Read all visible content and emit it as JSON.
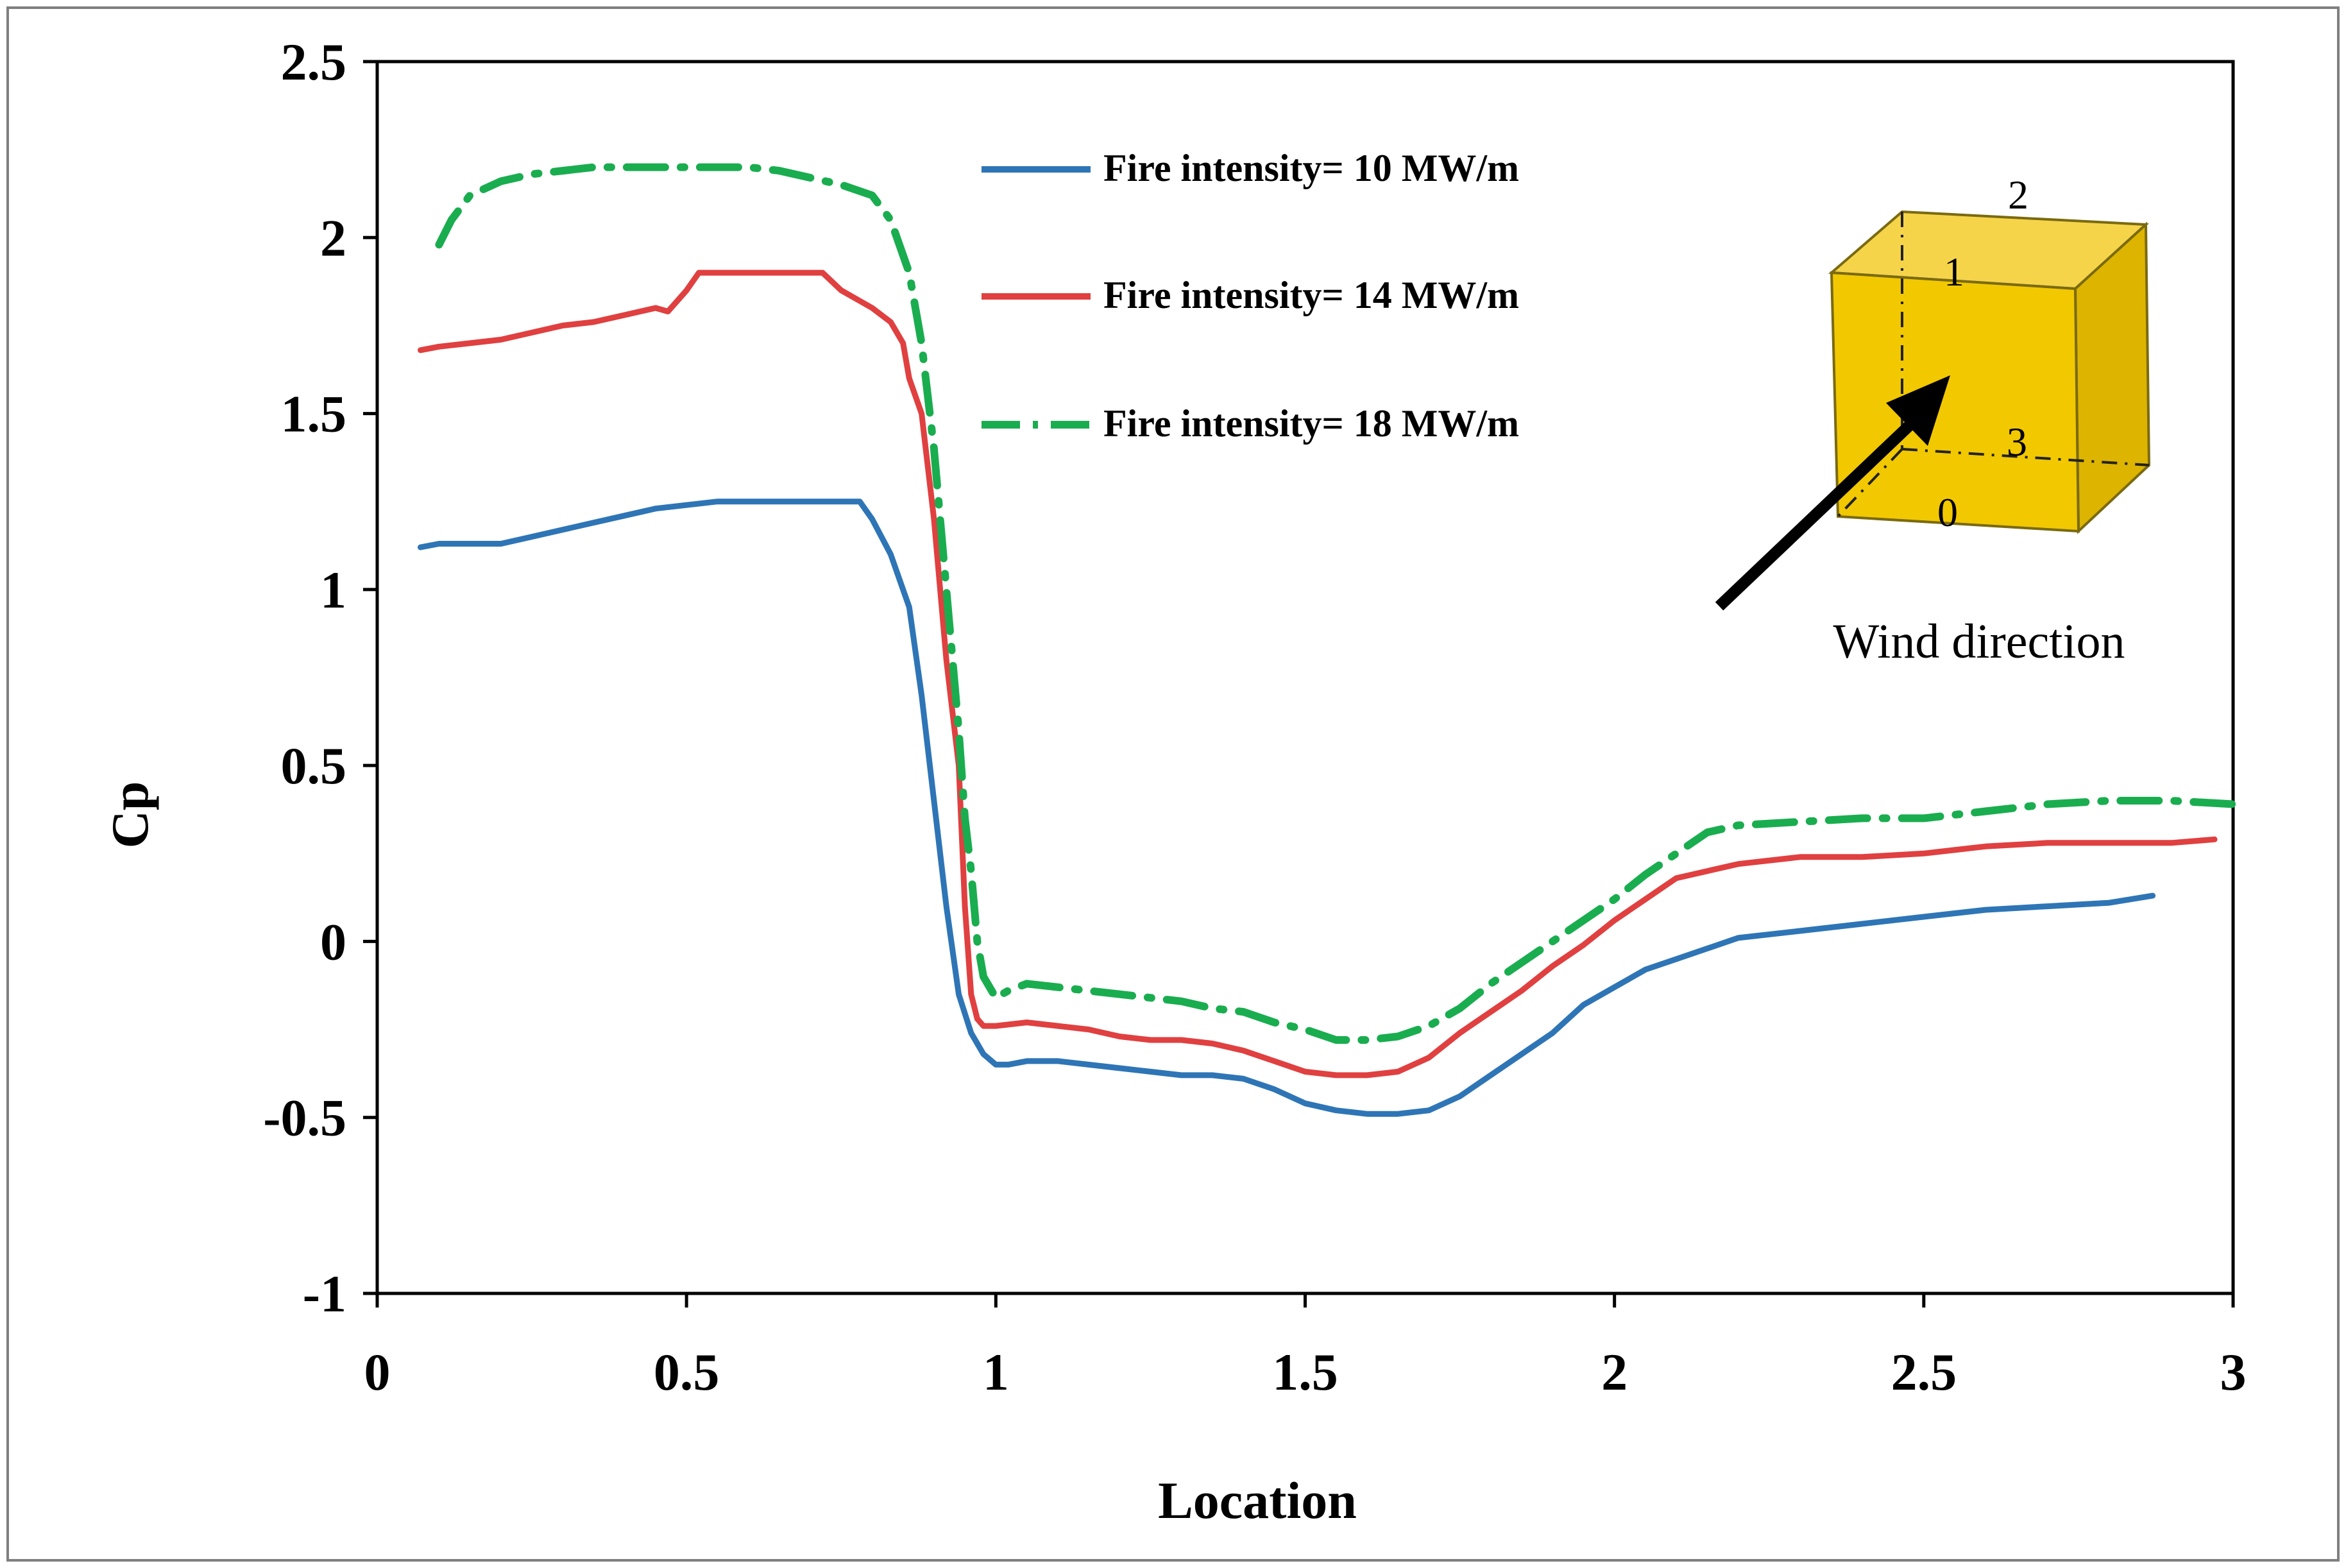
{
  "chart_data": {
    "type": "line",
    "title": "",
    "xlabel": "Location",
    "ylabel": "Cp",
    "xlim": [
      0,
      3
    ],
    "ylim": [
      -1,
      2.5
    ],
    "xticks": [
      0,
      0.5,
      1,
      1.5,
      2,
      2.5,
      3
    ],
    "xtick_labels": [
      "0",
      "0.5",
      "1",
      "1.5",
      "2",
      "2.5",
      "3"
    ],
    "yticks": [
      -1,
      -0.5,
      0,
      0.5,
      1,
      1.5,
      2,
      2.5
    ],
    "ytick_labels": [
      "-1",
      "-0.5",
      "0",
      "0.5",
      "1",
      "1.5",
      "2",
      "2.5"
    ],
    "grid": false,
    "legend_position": "top-center",
    "series": [
      {
        "name": "Fire intensity= 10 MW/m",
        "color": "#2e75b6",
        "style": "solid",
        "x": [
          0.07,
          0.1,
          0.15,
          0.2,
          0.25,
          0.3,
          0.35,
          0.4,
          0.45,
          0.5,
          0.55,
          0.6,
          0.65,
          0.7,
          0.75,
          0.78,
          0.8,
          0.83,
          0.86,
          0.88,
          0.9,
          0.92,
          0.94,
          0.96,
          0.98,
          1.0,
          1.02,
          1.05,
          1.1,
          1.15,
          1.2,
          1.25,
          1.3,
          1.35,
          1.4,
          1.45,
          1.5,
          1.55,
          1.6,
          1.65,
          1.7,
          1.75,
          1.8,
          1.85,
          1.9,
          1.95,
          2.0,
          2.05,
          2.1,
          2.15,
          2.2,
          2.3,
          2.4,
          2.5,
          2.6,
          2.7,
          2.8,
          2.87
        ],
        "y": [
          1.12,
          1.13,
          1.13,
          1.13,
          1.15,
          1.17,
          1.19,
          1.21,
          1.23,
          1.24,
          1.25,
          1.25,
          1.25,
          1.25,
          1.25,
          1.25,
          1.2,
          1.1,
          0.95,
          0.7,
          0.4,
          0.1,
          -0.15,
          -0.26,
          -0.32,
          -0.35,
          -0.35,
          -0.34,
          -0.34,
          -0.35,
          -0.36,
          -0.37,
          -0.38,
          -0.38,
          -0.39,
          -0.42,
          -0.46,
          -0.48,
          -0.49,
          -0.49,
          -0.48,
          -0.44,
          -0.38,
          -0.32,
          -0.26,
          -0.18,
          -0.13,
          -0.08,
          -0.05,
          -0.02,
          0.01,
          0.03,
          0.05,
          0.07,
          0.09,
          0.1,
          0.11,
          0.13
        ]
      },
      {
        "name": "Fire intensity= 14 MW/m",
        "color": "#e04040",
        "style": "solid",
        "x": [
          0.07,
          0.1,
          0.15,
          0.2,
          0.25,
          0.3,
          0.35,
          0.4,
          0.45,
          0.47,
          0.5,
          0.52,
          0.55,
          0.6,
          0.65,
          0.7,
          0.72,
          0.75,
          0.78,
          0.8,
          0.83,
          0.85,
          0.86,
          0.88,
          0.9,
          0.92,
          0.94,
          0.95,
          0.96,
          0.97,
          0.98,
          1.0,
          1.05,
          1.1,
          1.15,
          1.2,
          1.25,
          1.3,
          1.35,
          1.4,
          1.45,
          1.5,
          1.55,
          1.6,
          1.65,
          1.7,
          1.75,
          1.8,
          1.85,
          1.9,
          1.95,
          2.0,
          2.05,
          2.1,
          2.15,
          2.2,
          2.3,
          2.4,
          2.5,
          2.6,
          2.7,
          2.8,
          2.9,
          2.97
        ],
        "y": [
          1.68,
          1.69,
          1.7,
          1.71,
          1.73,
          1.75,
          1.76,
          1.78,
          1.8,
          1.79,
          1.85,
          1.9,
          1.9,
          1.9,
          1.9,
          1.9,
          1.9,
          1.85,
          1.82,
          1.8,
          1.76,
          1.7,
          1.6,
          1.5,
          1.2,
          0.8,
          0.5,
          0.1,
          -0.15,
          -0.22,
          -0.24,
          -0.24,
          -0.23,
          -0.24,
          -0.25,
          -0.27,
          -0.28,
          -0.28,
          -0.29,
          -0.31,
          -0.34,
          -0.37,
          -0.38,
          -0.38,
          -0.37,
          -0.33,
          -0.26,
          -0.2,
          -0.14,
          -0.07,
          -0.01,
          0.06,
          0.12,
          0.18,
          0.2,
          0.22,
          0.24,
          0.24,
          0.25,
          0.27,
          0.28,
          0.28,
          0.28,
          0.29
        ]
      },
      {
        "name": "Fire intensity= 18 MW/m",
        "color": "#1aad4f",
        "style": "dash-dot",
        "x": [
          0.1,
          0.12,
          0.15,
          0.2,
          0.25,
          0.3,
          0.35,
          0.4,
          0.5,
          0.6,
          0.65,
          0.7,
          0.75,
          0.8,
          0.83,
          0.86,
          0.88,
          0.9,
          0.92,
          0.94,
          0.95,
          0.96,
          0.97,
          0.98,
          1.0,
          1.02,
          1.05,
          1.1,
          1.15,
          1.2,
          1.25,
          1.3,
          1.35,
          1.4,
          1.45,
          1.5,
          1.55,
          1.6,
          1.65,
          1.7,
          1.75,
          1.8,
          1.85,
          1.9,
          1.95,
          2.0,
          2.05,
          2.1,
          2.15,
          2.2,
          2.3,
          2.4,
          2.5,
          2.6,
          2.7,
          2.8,
          2.9,
          3.0
        ],
        "y": [
          1.98,
          2.05,
          2.12,
          2.16,
          2.18,
          2.19,
          2.2,
          2.2,
          2.2,
          2.2,
          2.19,
          2.17,
          2.15,
          2.12,
          2.05,
          1.9,
          1.7,
          1.4,
          1.0,
          0.6,
          0.35,
          0.2,
          0.0,
          -0.1,
          -0.16,
          -0.14,
          -0.12,
          -0.13,
          -0.14,
          -0.15,
          -0.16,
          -0.17,
          -0.19,
          -0.2,
          -0.23,
          -0.25,
          -0.28,
          -0.28,
          -0.27,
          -0.24,
          -0.19,
          -0.12,
          -0.06,
          0.0,
          0.06,
          0.12,
          0.19,
          0.25,
          0.31,
          0.33,
          0.34,
          0.35,
          0.35,
          0.37,
          0.39,
          0.4,
          0.4,
          0.39
        ]
      }
    ],
    "inset": {
      "corner_labels": [
        "0",
        "1",
        "2",
        "3"
      ],
      "caption": "Wind direction"
    }
  }
}
